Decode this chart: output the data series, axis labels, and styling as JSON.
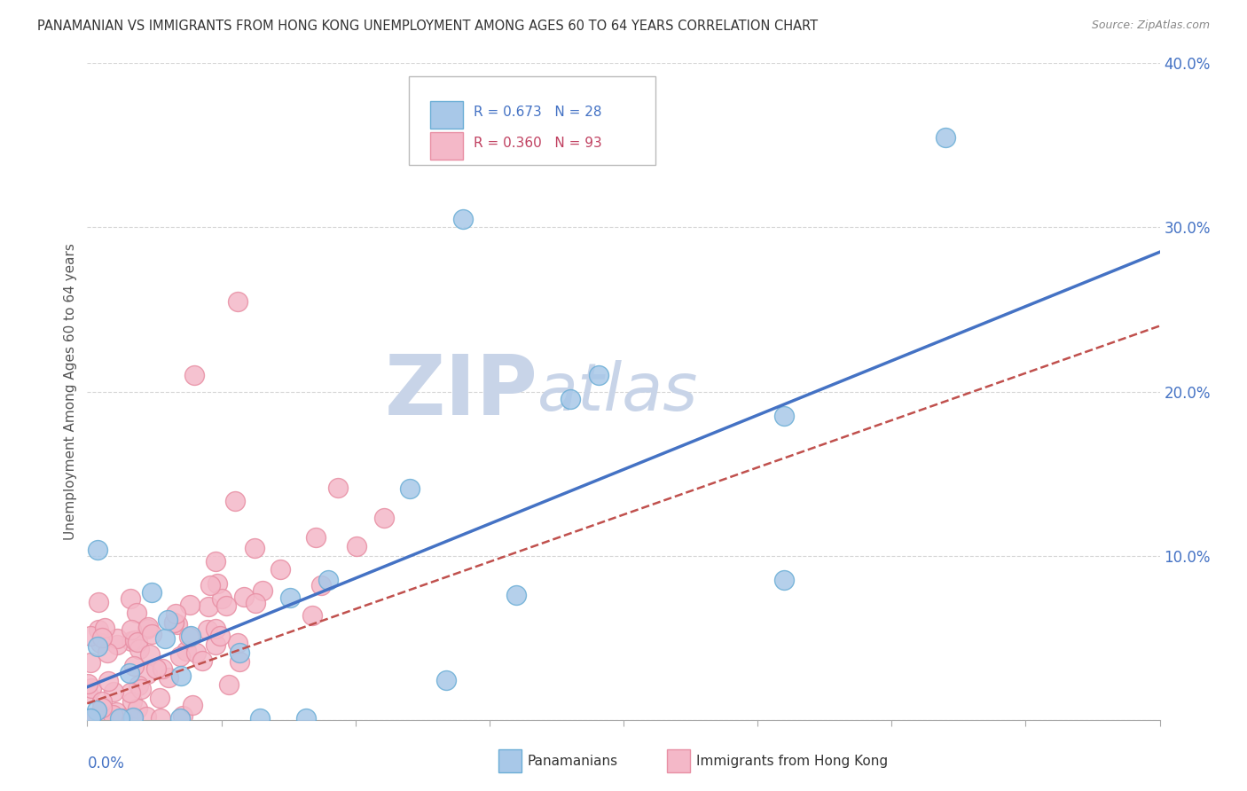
{
  "title": "PANAMANIAN VS IMMIGRANTS FROM HONG KONG UNEMPLOYMENT AMONG AGES 60 TO 64 YEARS CORRELATION CHART",
  "source": "Source: ZipAtlas.com",
  "ylabel": "Unemployment Among Ages 60 to 64 years",
  "xlim": [
    0.0,
    0.2
  ],
  "ylim": [
    0.0,
    0.4
  ],
  "ytick_values": [
    0.0,
    0.1,
    0.2,
    0.3,
    0.4
  ],
  "ytick_labels": [
    "",
    "10.0%",
    "20.0%",
    "30.0%",
    "40.0%"
  ],
  "legend_blue_label": "R = 0.673   N = 28",
  "legend_pink_label": "R = 0.360   N = 93",
  "legend_bottom_blue": "Panamanians",
  "legend_bottom_pink": "Immigrants from Hong Kong",
  "blue_scatter_color": "#a8c8e8",
  "blue_edge_color": "#6baed6",
  "pink_scatter_color": "#f4b8c8",
  "pink_edge_color": "#e88fa4",
  "blue_line_color": "#4472c4",
  "pink_line_color": "#c0504d",
  "blue_legend_fill": "#a8c8e8",
  "blue_legend_edge": "#6baed6",
  "pink_legend_fill": "#f4b8c8",
  "pink_legend_edge": "#e88fa4",
  "tick_label_color": "#4472c4",
  "watermark_zip_color": "#c8d4e8",
  "watermark_atlas_color": "#c8d4e8",
  "background_color": "#ffffff",
  "grid_color": "#cccccc",
  "blue_line_x0": 0.0,
  "blue_line_y0": 0.02,
  "blue_line_x1": 0.2,
  "blue_line_y1": 0.285,
  "pink_line_x0": 0.0,
  "pink_line_y0": 0.01,
  "pink_line_x1": 0.2,
  "pink_line_y1": 0.24
}
